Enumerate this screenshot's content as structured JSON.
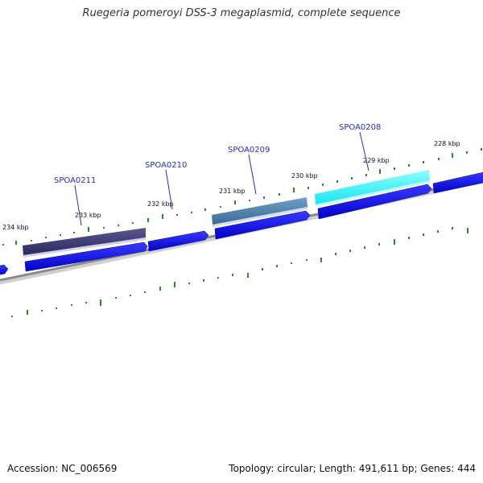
{
  "title": "Ruegeria pomeroyi DSS-3 megaplasmid, complete sequence",
  "footer": {
    "accession": "Accession: NC_006569",
    "summary": "Topology: circular; Length: 491,611 bp; Genes: 444"
  },
  "kbp_labels": [
    "228 kbp",
    "229 kbp",
    "230 kbp",
    "231 kbp",
    "232 kbp",
    "233 kbp",
    "234 kbp"
  ],
  "gene_labels": [
    "SPOA0208",
    "SPOA0209",
    "SPOA0210",
    "SPOA0211"
  ],
  "colors": {
    "forward_gene": "#0a0ae6",
    "cds_dark": "#3d3a7a",
    "cds_steel": "#4a7fae",
    "cds_cyan": "#33ffff",
    "backbone": "#8a8a8a",
    "tick": "#2a8a2a",
    "label": "#2a2ab8"
  }
}
